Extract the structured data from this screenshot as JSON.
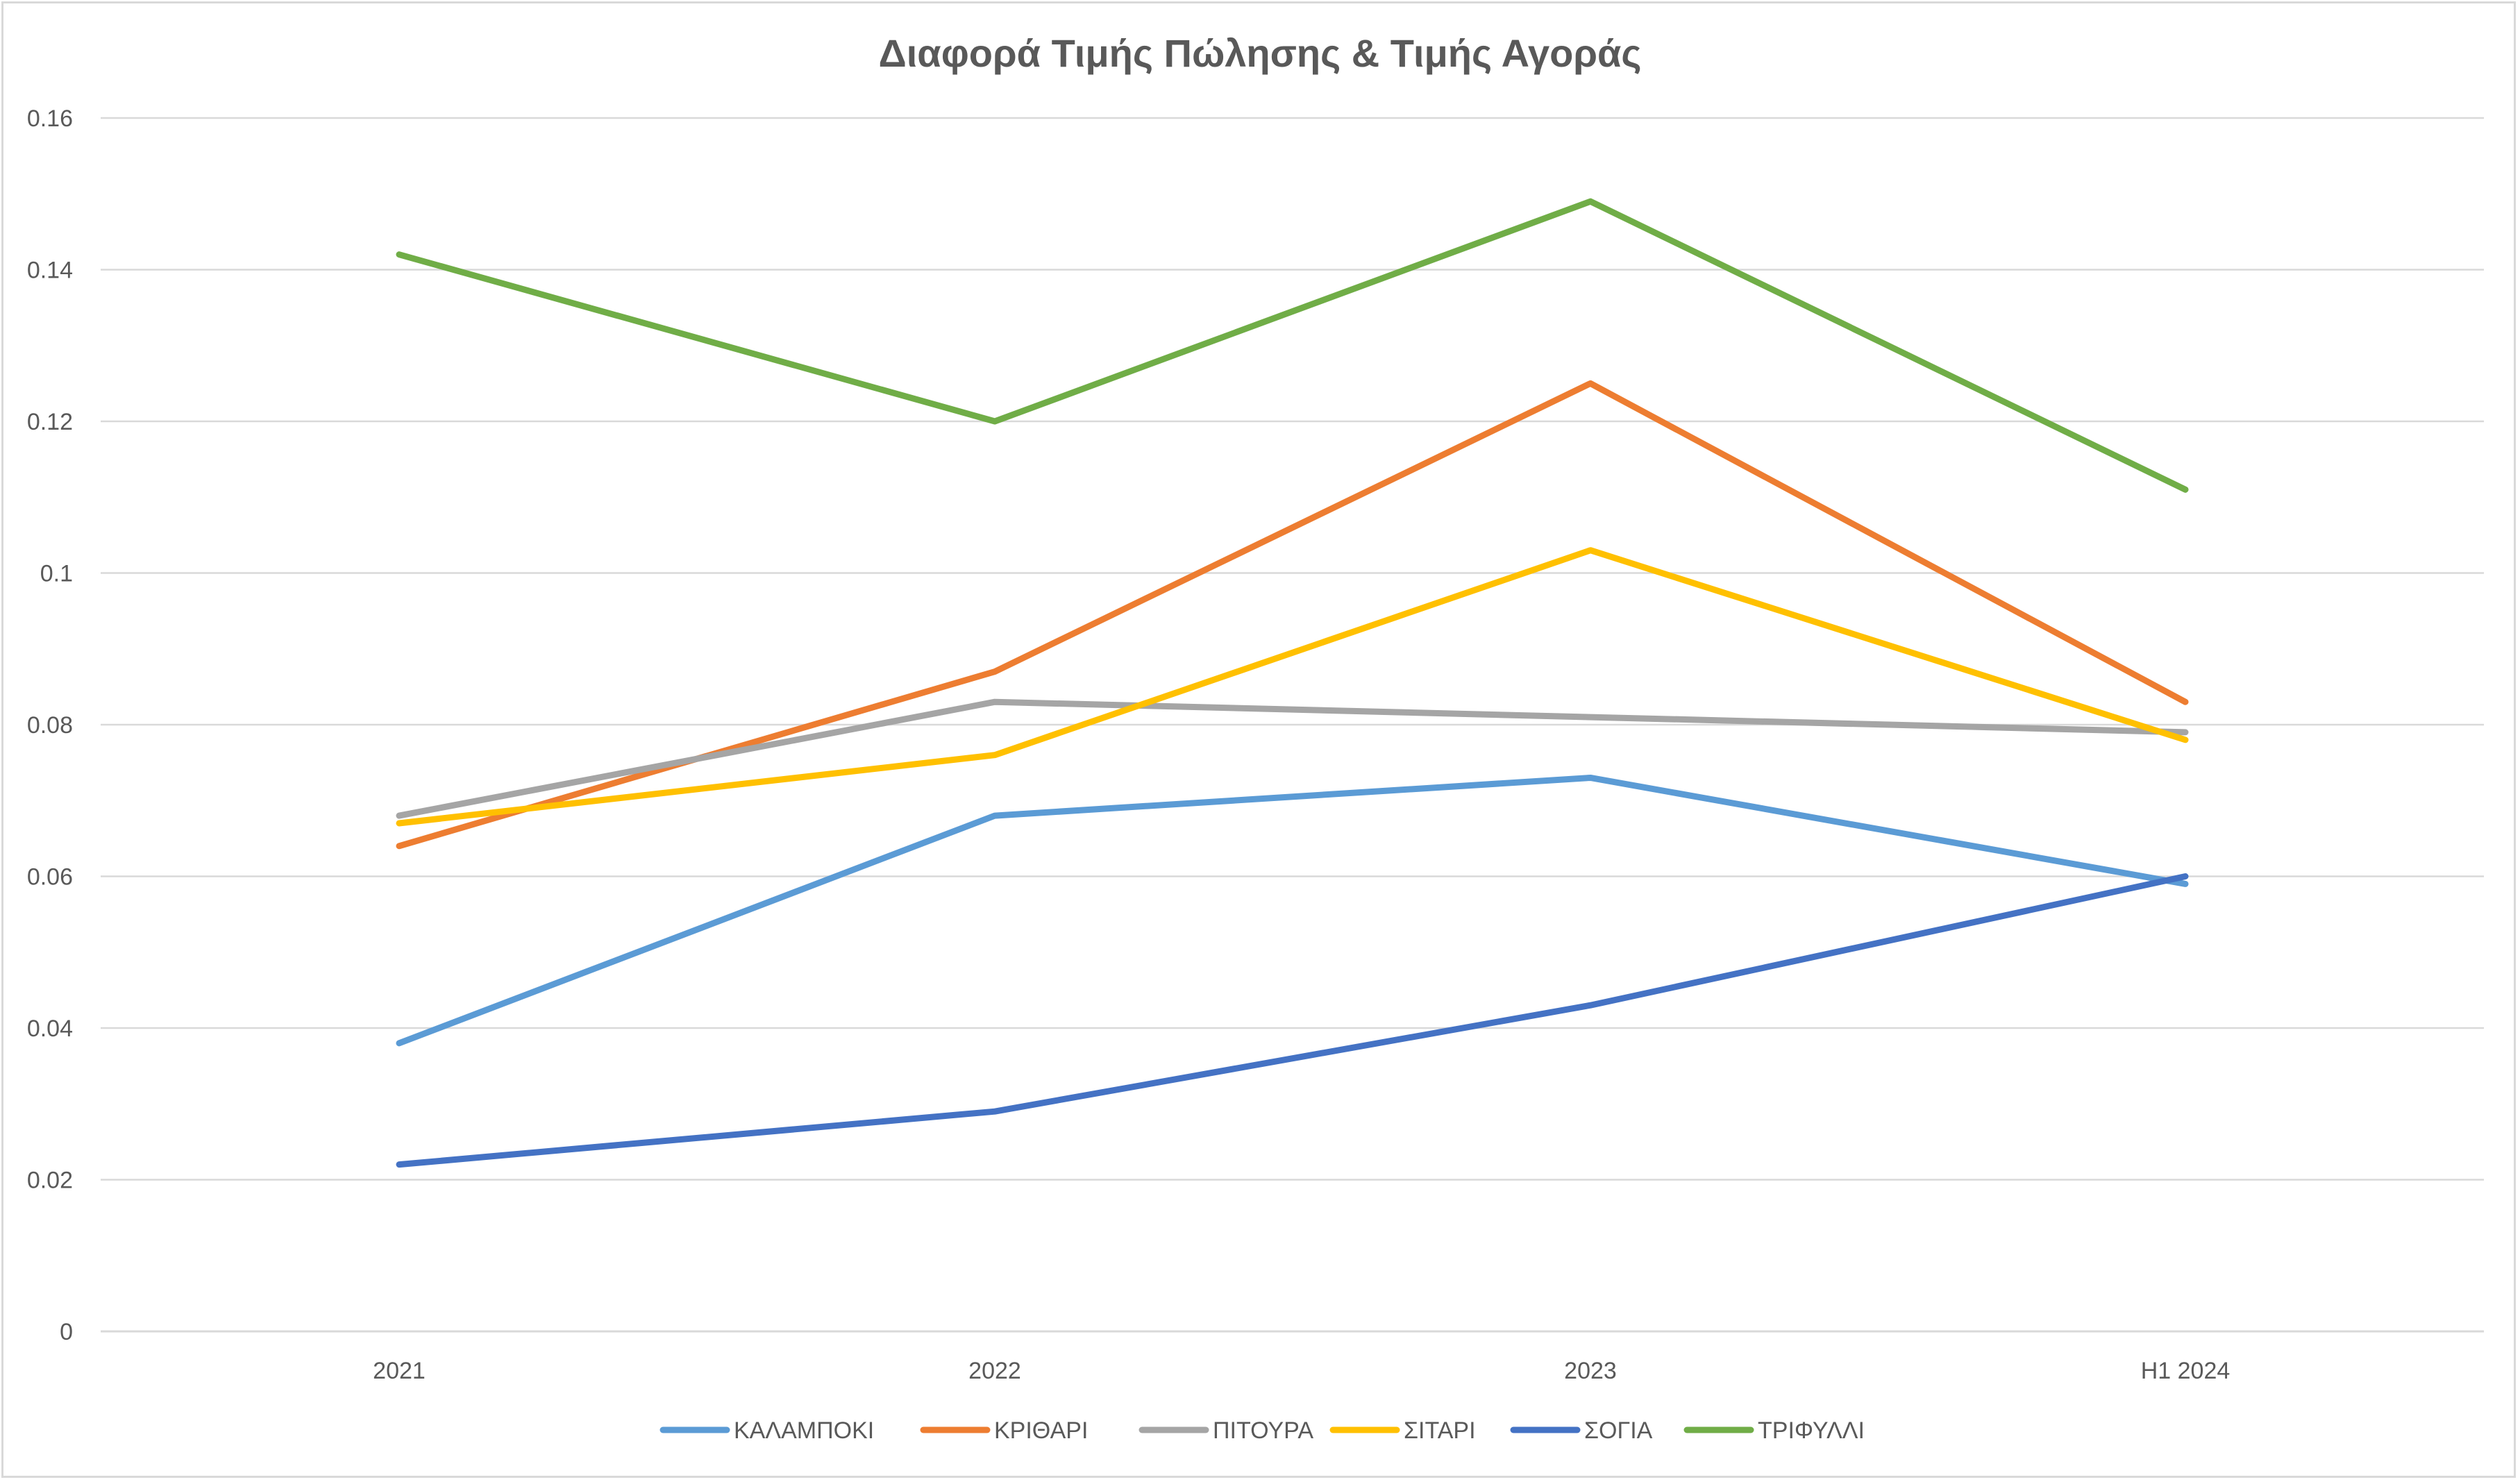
{
  "chart_data": {
    "type": "line",
    "title": "Διαφορά Τιμής Πώλησης & Τιμής Αγοράς",
    "categories": [
      "2021",
      "2022",
      "2023",
      "H1 2024"
    ],
    "ylim": [
      0,
      0.16
    ],
    "yticks": [
      "0",
      "0.02",
      "0.04",
      "0.06",
      "0.08",
      "0.1",
      "0.12",
      "0.14",
      "0.16"
    ],
    "grid": true,
    "legend_position": "bottom",
    "series": [
      {
        "name": "ΚΑΛΑΜΠΟΚΙ",
        "color": "#5b9bd5",
        "values": [
          0.038,
          0.068,
          0.073,
          0.059
        ]
      },
      {
        "name": "ΚΡΙΘΑΡΙ",
        "color": "#ed7d31",
        "values": [
          0.064,
          0.087,
          0.125,
          0.083
        ]
      },
      {
        "name": "ΠΙΤΟΥΡΑ",
        "color": "#a5a5a5",
        "values": [
          0.068,
          0.083,
          0.081,
          0.079
        ]
      },
      {
        "name": "ΣΙΤΑΡΙ",
        "color": "#ffc000",
        "values": [
          0.067,
          0.076,
          0.103,
          0.078
        ]
      },
      {
        "name": "ΣΟΓΙΑ",
        "color": "#4472c4",
        "values": [
          0.022,
          0.029,
          0.043,
          0.06
        ]
      },
      {
        "name": "ΤΡΙΦΥΛΛΙ",
        "color": "#70ad47",
        "values": [
          0.142,
          0.12,
          0.149,
          0.111
        ]
      }
    ]
  }
}
